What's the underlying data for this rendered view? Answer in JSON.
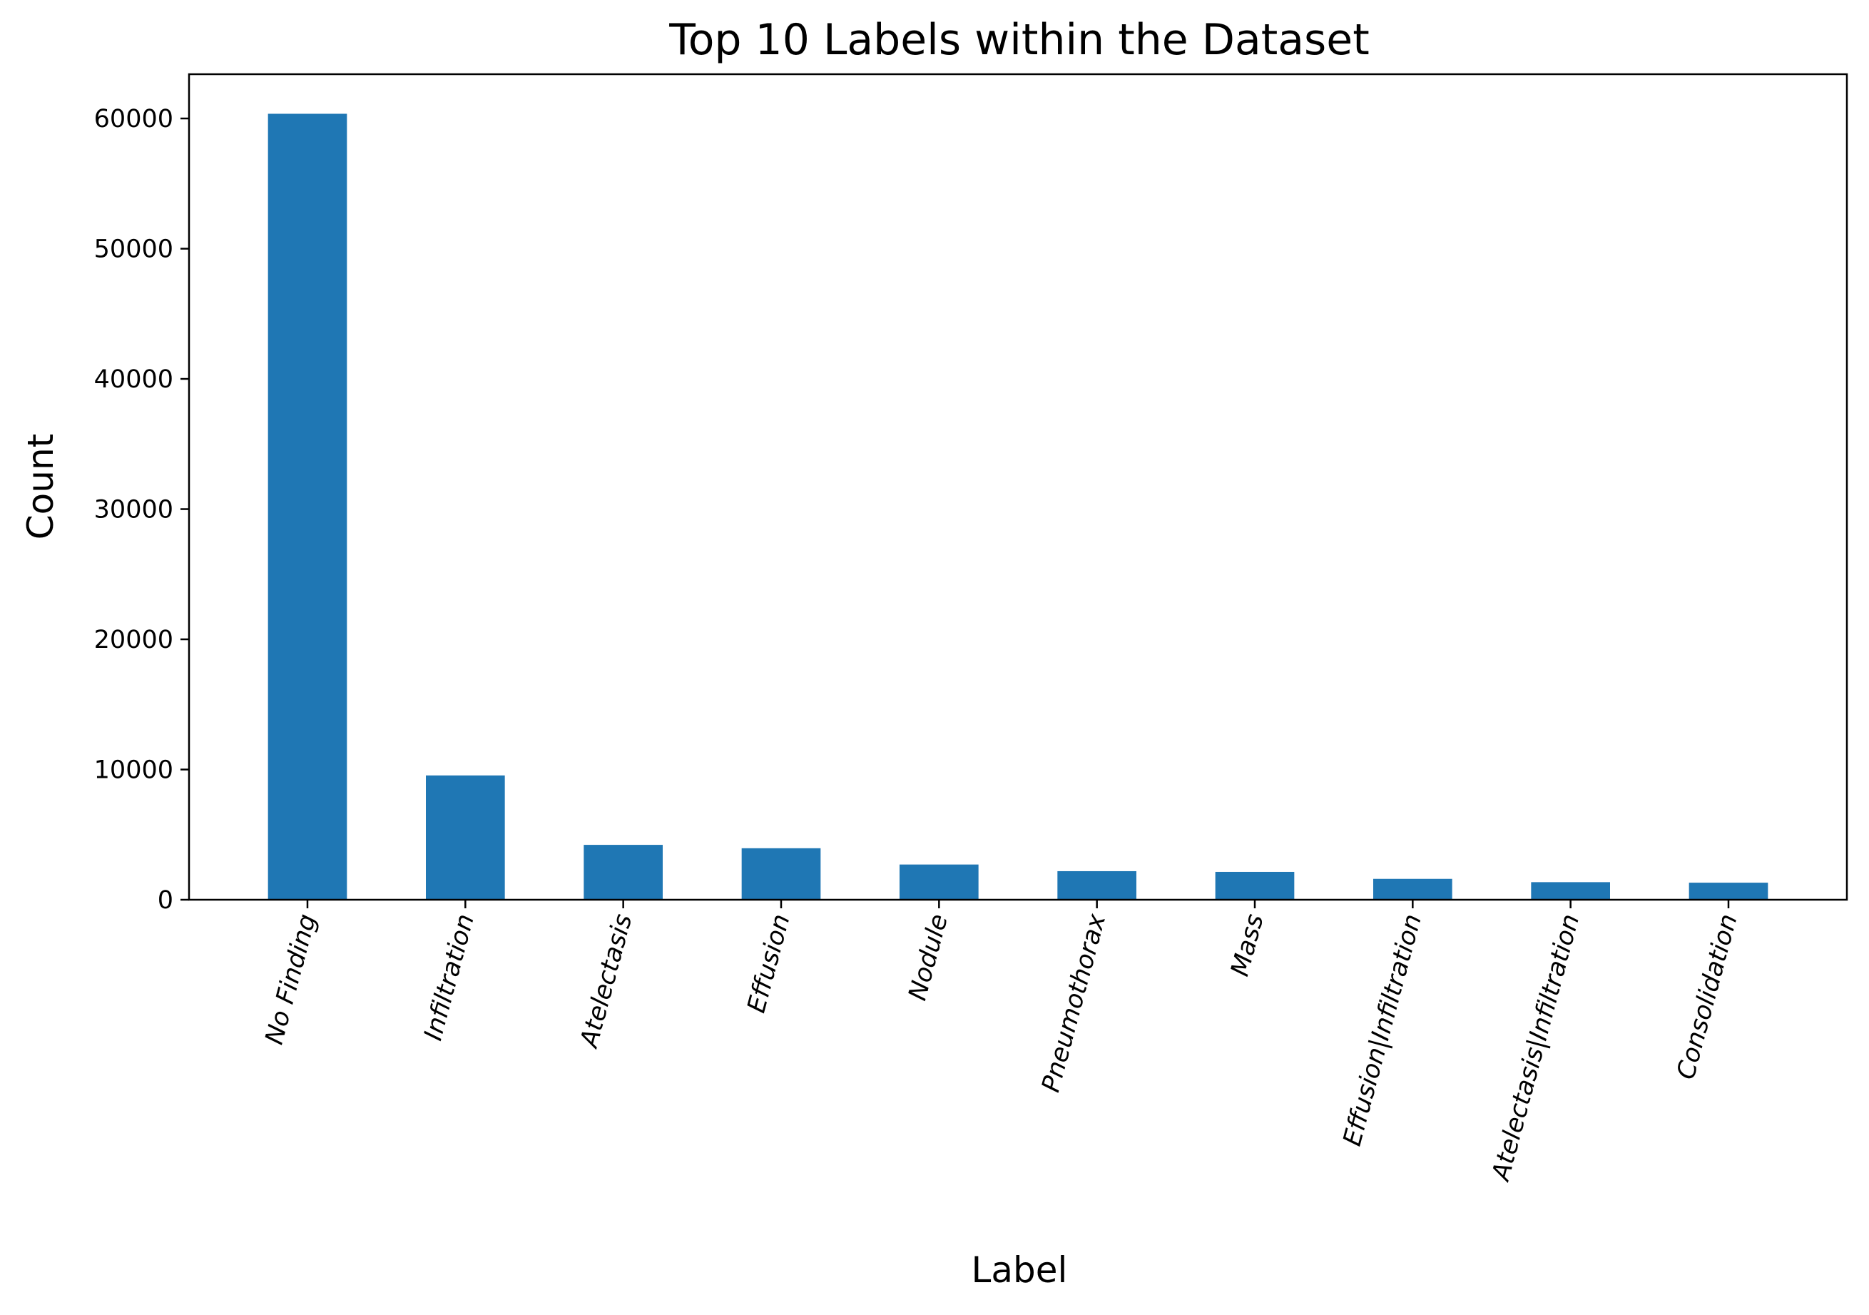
{
  "chart_data": {
    "type": "bar",
    "title": "Top 10 Labels within the Dataset",
    "xlabel": "Label",
    "ylabel": "Count",
    "categories": [
      "No Finding",
      "Infiltration",
      "Atelectasis",
      "Effusion",
      "Nodule",
      "Pneumothorax",
      "Mass",
      "Effusion|Infiltration",
      "Atelectasis|Infiltration",
      "Consolidation"
    ],
    "values": [
      60361,
      9547,
      4215,
      3955,
      2705,
      2194,
      2139,
      1603,
      1350,
      1310
    ],
    "ylim": [
      0,
      63400
    ],
    "yticks": [
      0,
      10000,
      20000,
      30000,
      40000,
      50000,
      60000
    ],
    "grid": false,
    "legend": "none",
    "bar_color": "#1f77b4"
  }
}
